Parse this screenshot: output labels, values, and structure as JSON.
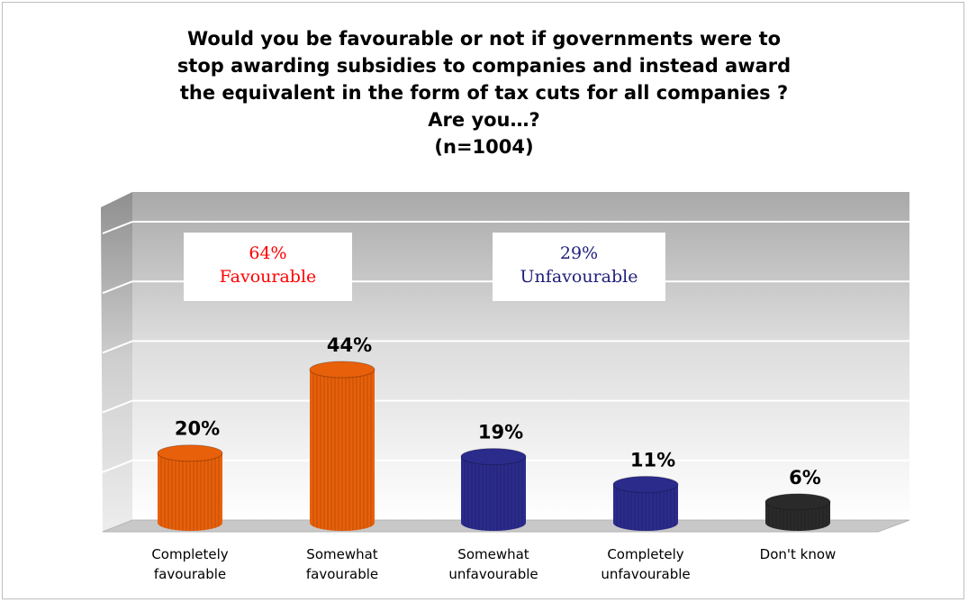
{
  "chart_data": {
    "type": "bar",
    "title_lines": [
      "Would you be favourable or not if governments were to",
      "stop awarding subsidies to companies and instead award",
      "the equivalent in the form of tax cuts for all companies ?",
      "Are you…?",
      "(n=1004)"
    ],
    "categories": [
      [
        "Completely",
        "favourable"
      ],
      [
        "Somewhat",
        "favourable"
      ],
      [
        "Somewhat",
        "unfavourable"
      ],
      [
        "Completely",
        "unfavourable"
      ],
      [
        "Don't know"
      ]
    ],
    "values": [
      20,
      44,
      19,
      11,
      6
    ],
    "value_labels": [
      "20%",
      "44%",
      "19%",
      "11%",
      "6%"
    ],
    "bar_colors": [
      "#e8600a",
      "#e8600a",
      "#2b2b8c",
      "#2b2b8c",
      "#2a2a2a"
    ],
    "ylim": [
      0,
      50
    ],
    "summary": [
      {
        "pct": "64%",
        "label": "Favourable",
        "color": "#ff0000"
      },
      {
        "pct": "29%",
        "label": "Unfavourable",
        "color": "#1f1f7a"
      }
    ]
  }
}
